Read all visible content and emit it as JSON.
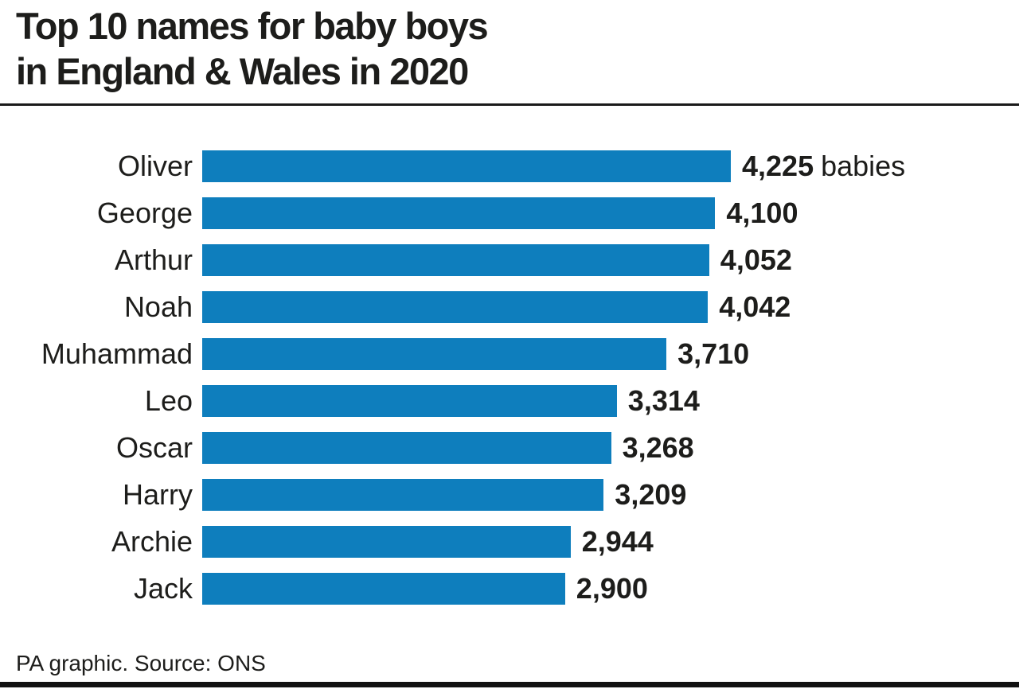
{
  "title": {
    "line1": "Top 10 names for baby boys",
    "line2": "in England & Wales in 2020"
  },
  "footer": {
    "credit": "PA graphic. Source: ONS"
  },
  "colors": {
    "bar": "#0e7ebd",
    "ink": "#1d1d1b",
    "rule": "#1a1a1a"
  },
  "chart_data": {
    "type": "bar",
    "orientation": "horizontal",
    "title": "Top 10 names for baby boys in England & Wales in 2020",
    "categories": [
      "Oliver",
      "George",
      "Arthur",
      "Noah",
      "Muhammad",
      "Leo",
      "Oscar",
      "Harry",
      "Archie",
      "Jack"
    ],
    "values": [
      4225,
      4100,
      4052,
      4042,
      3710,
      3314,
      3268,
      3209,
      2944,
      2900
    ],
    "value_labels": [
      "4,225",
      "4,100",
      "4,052",
      "4,042",
      "3,710",
      "3,314",
      "3,268",
      "3,209",
      "2,944",
      "2,900"
    ],
    "first_row_suffix": "babies",
    "xlim": [
      0,
      4225
    ],
    "value_label_position": "end-of-bar",
    "grid": false,
    "legend": false,
    "source": "PA graphic. Source: ONS"
  }
}
